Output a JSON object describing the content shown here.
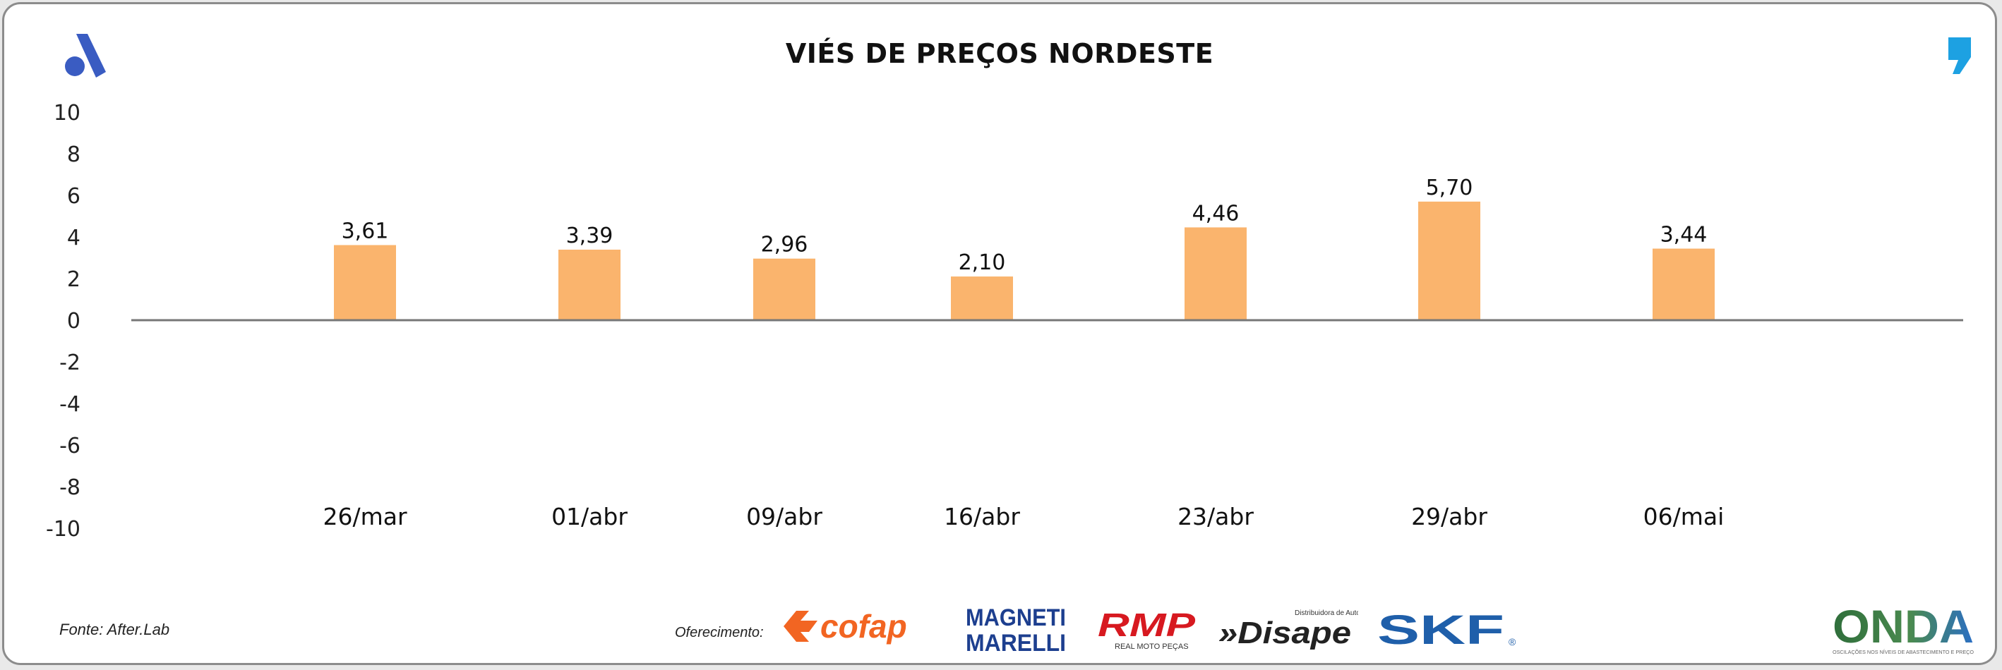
{
  "title": "VIÉS DE PREÇOS NORDESTE",
  "source": "Fonte: After.Lab",
  "sponsor_label": "Oferecimento:",
  "sponsors": [
    {
      "name": "cofap",
      "color": "#f26522"
    },
    {
      "name_top": "MAGNETI",
      "name_bottom": "MARELLI",
      "color": "#1d3f8f"
    },
    {
      "name": "RMP",
      "sub": "REAL MOTO PEÇAS",
      "color": "#d71920"
    },
    {
      "name": "»Disape",
      "sub": "Distribuidora de Autopeças",
      "color": "#222222"
    },
    {
      "name": "SKF",
      "mark": "®",
      "color": "#1f5faa"
    },
    {
      "name": "ONDA",
      "sub": "OSCILAÇÕES NOS NÍVEIS DE ABASTECIMENTO E PREÇO",
      "color": "#2f6e3b"
    }
  ],
  "icons": {
    "brand_left": "a-logo-icon",
    "brand_right": "quote-mark-icon",
    "brand_left_color": "#3a5cc2",
    "brand_right_color": "#1da1e2"
  },
  "chart_data": {
    "type": "bar",
    "title": "VIÉS DE PREÇOS NORDESTE",
    "categories": [
      "26/mar",
      "01/abr",
      "09/abr",
      "16/abr",
      "23/abr",
      "29/abr",
      "06/mai"
    ],
    "values": [
      3.61,
      3.39,
      2.96,
      2.1,
      4.46,
      5.7,
      3.44
    ],
    "value_labels": [
      "3,61",
      "3,39",
      "2,96",
      "2,10",
      "4,46",
      "5,70",
      "3,44"
    ],
    "ylim": [
      -10,
      10
    ],
    "yticks": [
      10,
      8,
      6,
      4,
      2,
      0,
      -2,
      -4,
      -6,
      -8,
      -10
    ],
    "grid": false,
    "legend": "none",
    "bar_color": "#fab46d",
    "axis_color": "#777777"
  }
}
